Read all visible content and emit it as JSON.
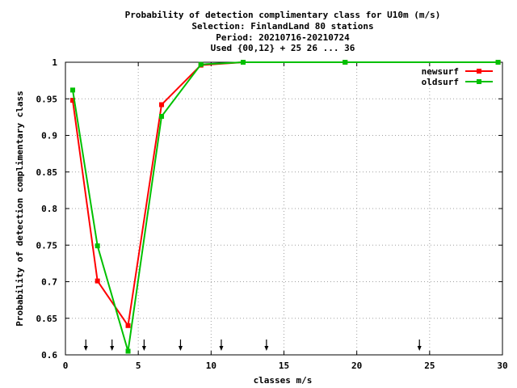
{
  "chart_data": {
    "type": "line",
    "title_lines": [
      "Probability of detection complimentary class  for U10m (m/s)",
      "Selection: FinlandLand     80 stations",
      "Period: 20210716-20210724",
      "Used {00,12} + 25 26 ... 36"
    ],
    "xlabel": "classes m/s",
    "ylabel": "Probability of detection complimentary class",
    "xlim": [
      0,
      30
    ],
    "ylim": [
      0.6,
      1.0
    ],
    "xticks": [
      0,
      5,
      10,
      15,
      20,
      25,
      30
    ],
    "yticks": [
      0.6,
      0.65,
      0.7,
      0.75,
      0.8,
      0.85,
      0.9,
      0.95,
      1.0
    ],
    "ytick_labels": [
      "0.6",
      "0.65",
      "0.7",
      "0.75",
      "0.8",
      "0.85",
      "0.9",
      "0.95",
      "1"
    ],
    "grid": true,
    "legend_position": "top-right",
    "series": [
      {
        "name": "newsurf",
        "color": "#ff0000",
        "x": [
          0.5,
          2.2,
          4.3,
          6.6,
          9.3,
          12.2,
          19.2,
          29.7
        ],
        "y": [
          0.948,
          0.701,
          0.64,
          0.942,
          0.996,
          1.0,
          1.0,
          1.0
        ]
      },
      {
        "name": "oldsurf",
        "color": "#00c000",
        "x": [
          0.5,
          2.2,
          4.3,
          6.6,
          9.3,
          12.2,
          19.2,
          29.7
        ],
        "y": [
          0.962,
          0.749,
          0.605,
          0.926,
          0.997,
          1.0,
          1.0,
          1.0
        ]
      }
    ],
    "arrow_markers_x": [
      1.4,
      3.2,
      5.4,
      7.9,
      10.7,
      13.8,
      24.3
    ]
  }
}
